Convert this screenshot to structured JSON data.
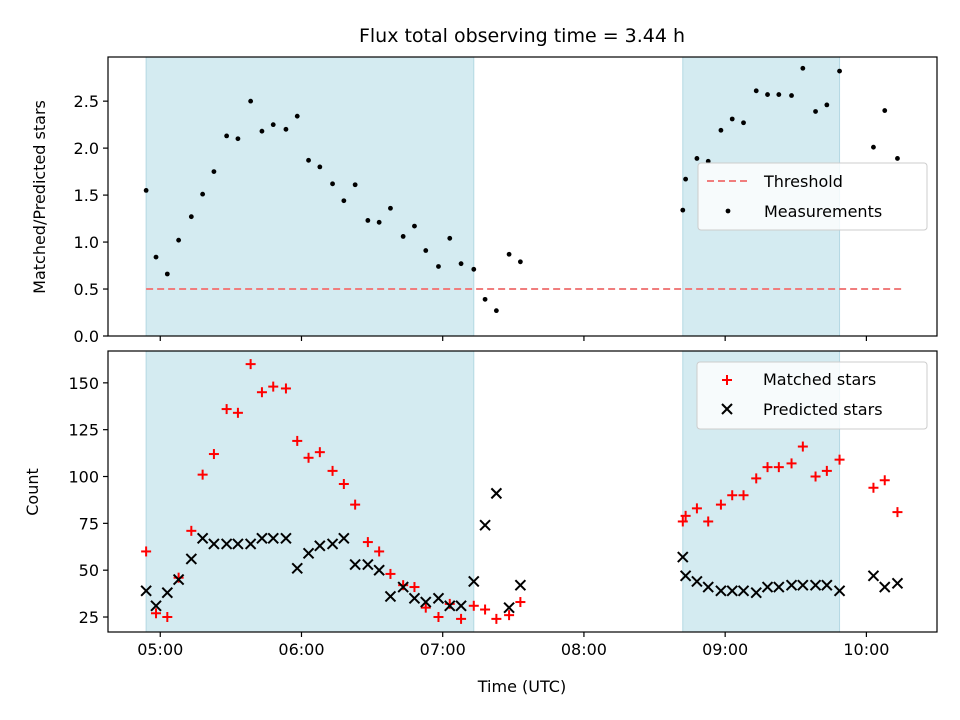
{
  "chart_data": [
    {
      "type": "scatter",
      "title": "Flux total observing time = 3.44 h",
      "xlabel": "",
      "ylabel": "Matched/Predicted stars",
      "x_unit": "hours UTC",
      "xlim": [
        4.63,
        10.5
      ],
      "ylim": [
        0.0,
        2.97
      ],
      "yticks": [
        0.0,
        0.5,
        1.0,
        1.5,
        2.0,
        2.5
      ],
      "ytick_labels": [
        "0.0",
        "0.5",
        "1.0",
        "1.5",
        "2.0",
        "2.5"
      ],
      "grid": false,
      "legend_position": "center-right",
      "shaded_ranges": [
        [
          4.9,
          7.22
        ],
        [
          8.7,
          9.81
        ]
      ],
      "shade_color": "#d4ebf1",
      "threshold": {
        "name": "Threshold",
        "y": 0.5,
        "x": [
          4.9,
          10.25
        ],
        "color": "#f07d7d",
        "style": "dashed"
      },
      "series": [
        {
          "name": "Measurements",
          "marker": "dot",
          "color": "#000000",
          "x": [
            4.9,
            4.97,
            5.05,
            5.13,
            5.22,
            5.3,
            5.38,
            5.47,
            5.55,
            5.64,
            5.72,
            5.8,
            5.89,
            5.97,
            6.05,
            6.13,
            6.22,
            6.3,
            6.38,
            6.47,
            6.55,
            6.63,
            6.72,
            6.8,
            6.88,
            6.97,
            7.05,
            7.13,
            7.22,
            7.3,
            7.38,
            7.47,
            7.55,
            8.7,
            8.72,
            8.8,
            8.88,
            8.97,
            9.05,
            9.13,
            9.22,
            9.3,
            9.38,
            9.47,
            9.55,
            9.64,
            9.72,
            9.81,
            10.05,
            10.13,
            10.22
          ],
          "y": [
            1.55,
            0.84,
            0.66,
            1.02,
            1.27,
            1.51,
            1.75,
            2.13,
            2.1,
            2.5,
            2.18,
            2.25,
            2.2,
            2.34,
            1.87,
            1.8,
            1.62,
            1.44,
            1.61,
            1.23,
            1.21,
            1.36,
            1.06,
            1.17,
            0.91,
            0.74,
            1.04,
            0.77,
            0.71,
            0.39,
            0.27,
            0.87,
            0.79,
            1.34,
            1.67,
            1.89,
            1.86,
            2.19,
            2.31,
            2.27,
            2.61,
            2.57,
            2.57,
            2.56,
            2.85,
            2.39,
            2.46,
            2.82,
            2.01,
            2.4,
            1.89
          ]
        }
      ]
    },
    {
      "type": "scatter",
      "title": "",
      "xlabel": "Time (UTC)",
      "ylabel": "Count",
      "x_unit": "hours UTC",
      "xlim": [
        4.63,
        10.5
      ],
      "ylim": [
        17,
        167
      ],
      "xticks": [
        5,
        6,
        7,
        8,
        9,
        10
      ],
      "xtick_labels": [
        "05:00",
        "06:00",
        "07:00",
        "08:00",
        "09:00",
        "10:00"
      ],
      "yticks": [
        25,
        50,
        75,
        100,
        125,
        150
      ],
      "ytick_labels": [
        "25",
        "50",
        "75",
        "100",
        "125",
        "150"
      ],
      "grid": false,
      "legend_position": "top-right",
      "shaded_ranges": [
        [
          4.9,
          7.22
        ],
        [
          8.7,
          9.81
        ]
      ],
      "shade_color": "#d4ebf1",
      "series": [
        {
          "name": "Matched stars",
          "marker": "plus",
          "color": "#ff0000",
          "x": [
            4.9,
            4.97,
            5.05,
            5.13,
            5.22,
            5.3,
            5.38,
            5.47,
            5.55,
            5.64,
            5.72,
            5.8,
            5.89,
            5.97,
            6.05,
            6.13,
            6.22,
            6.3,
            6.38,
            6.47,
            6.55,
            6.63,
            6.72,
            6.8,
            6.88,
            6.97,
            7.05,
            7.13,
            7.22,
            7.3,
            7.38,
            7.47,
            7.55,
            8.7,
            8.72,
            8.8,
            8.88,
            8.97,
            9.05,
            9.13,
            9.22,
            9.3,
            9.38,
            9.47,
            9.55,
            9.64,
            9.72,
            9.81,
            10.05,
            10.13,
            10.22
          ],
          "y": [
            60,
            27,
            25,
            46,
            71,
            101,
            112,
            136,
            134,
            160,
            145,
            148,
            147,
            119,
            110,
            113,
            103,
            96,
            85,
            65,
            60,
            48,
            42,
            41,
            30,
            25,
            32,
            24,
            31,
            29,
            24,
            26,
            33,
            76,
            79,
            83,
            76,
            85,
            90,
            90,
            99,
            105,
            105,
            107,
            116,
            100,
            103,
            109,
            94,
            98,
            81
          ]
        },
        {
          "name": "Predicted stars",
          "marker": "x",
          "color": "#000000",
          "x": [
            4.9,
            4.97,
            5.05,
            5.13,
            5.22,
            5.3,
            5.38,
            5.47,
            5.55,
            5.64,
            5.72,
            5.8,
            5.89,
            5.97,
            6.05,
            6.13,
            6.22,
            6.3,
            6.38,
            6.47,
            6.55,
            6.63,
            6.72,
            6.8,
            6.88,
            6.97,
            7.05,
            7.13,
            7.22,
            7.3,
            7.38,
            7.47,
            7.55,
            8.7,
            8.72,
            8.8,
            8.88,
            8.97,
            9.05,
            9.13,
            9.22,
            9.3,
            9.38,
            9.47,
            9.55,
            9.64,
            9.72,
            9.81,
            10.05,
            10.13,
            10.22
          ],
          "y": [
            39,
            31,
            38,
            45,
            56,
            67,
            64,
            64,
            64,
            64,
            67,
            67,
            67,
            51,
            59,
            63,
            64,
            67,
            53,
            53,
            50,
            36,
            41,
            35,
            33,
            35,
            31,
            31,
            44,
            74,
            91,
            30,
            42,
            57,
            47,
            44,
            41,
            39,
            39,
            39,
            38,
            41,
            41,
            42,
            42,
            42,
            42,
            39,
            47,
            41,
            43
          ]
        }
      ]
    }
  ]
}
